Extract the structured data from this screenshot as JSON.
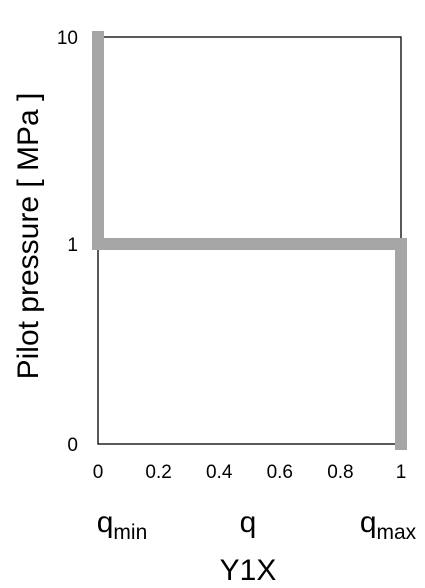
{
  "chart_data": {
    "type": "line",
    "ylabel": "Pilot pressure [ MPa ]",
    "xlabel": "Y1X",
    "x_ticks": [
      "0",
      "0.2",
      "0.4",
      "0.6",
      "0.8",
      "1"
    ],
    "y_ticks": [
      "0",
      "1",
      "10"
    ],
    "xlim": [
      0,
      1
    ],
    "y_scale": "categorical",
    "grid": false,
    "x_annotations": [
      {
        "base": "q",
        "sub": "min",
        "x": 0
      },
      {
        "base": "q",
        "sub": "",
        "x": 0.5
      },
      {
        "base": "q",
        "sub": "max",
        "x": 1
      }
    ],
    "series": [
      {
        "color": "#a6a6a6",
        "points": [
          {
            "x": 0,
            "y": "10"
          },
          {
            "x": 0,
            "y": "1"
          },
          {
            "x": 1,
            "y": "1"
          },
          {
            "x": 1,
            "y": "0"
          }
        ]
      }
    ]
  }
}
